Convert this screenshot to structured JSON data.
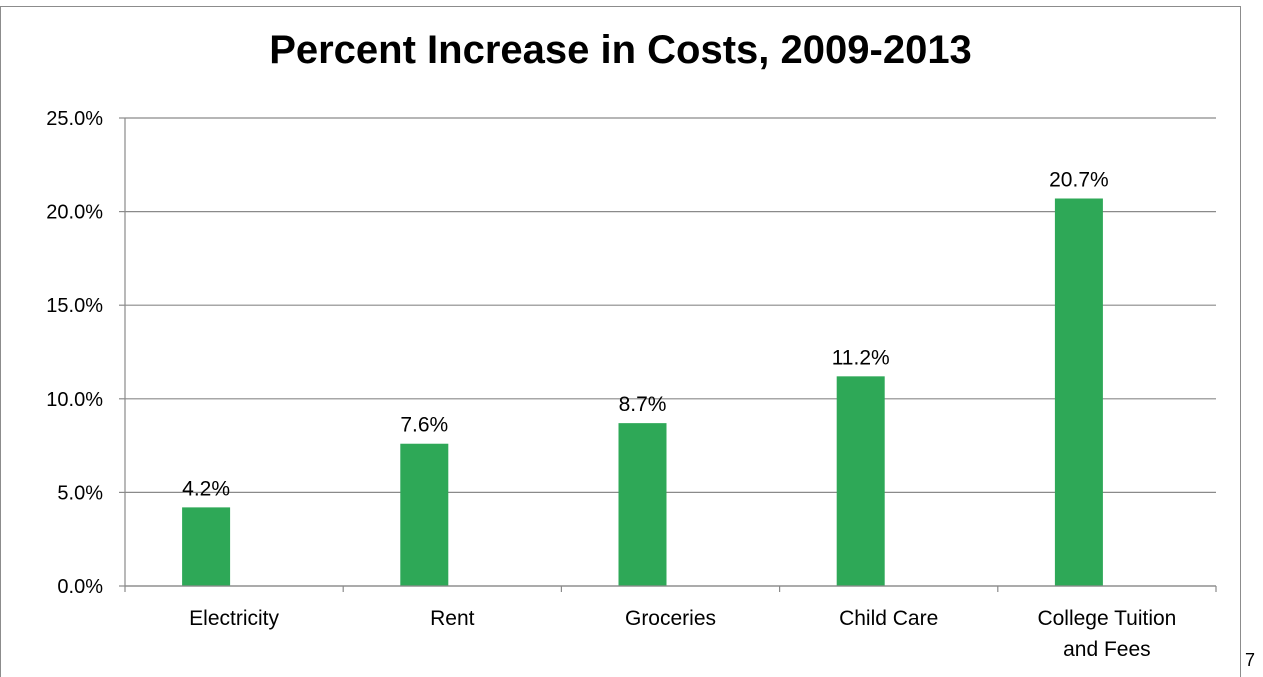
{
  "page": {
    "page_number": "7"
  },
  "colors": {
    "bar": "#2ea857",
    "grid": "#8a8a8a",
    "text": "#000000",
    "frame": "#8c8c8c"
  },
  "chart_data": {
    "type": "bar",
    "title": "Percent Increase in Costs, 2009-2013",
    "xlabel": "",
    "ylabel": "",
    "categories": [
      "Electricity",
      "Rent",
      "Groceries",
      "Child Care",
      "College Tuition and Fees"
    ],
    "category_lines": [
      [
        "Electricity"
      ],
      [
        "Rent"
      ],
      [
        "Groceries"
      ],
      [
        "Child Care"
      ],
      [
        "College Tuition",
        "and Fees"
      ]
    ],
    "values": [
      4.2,
      7.6,
      8.7,
      11.2,
      20.7
    ],
    "data_labels": [
      "4.2%",
      "7.6%",
      "8.7%",
      "11.2%",
      "20.7%"
    ],
    "ylim": [
      0,
      25
    ],
    "y_ticks": [
      0,
      5,
      10,
      15,
      20,
      25
    ],
    "y_tick_labels": [
      "0.0%",
      "5.0%",
      "10.0%",
      "15.0%",
      "20.0%",
      "25.0%"
    ],
    "grid": true,
    "legend": "none"
  }
}
